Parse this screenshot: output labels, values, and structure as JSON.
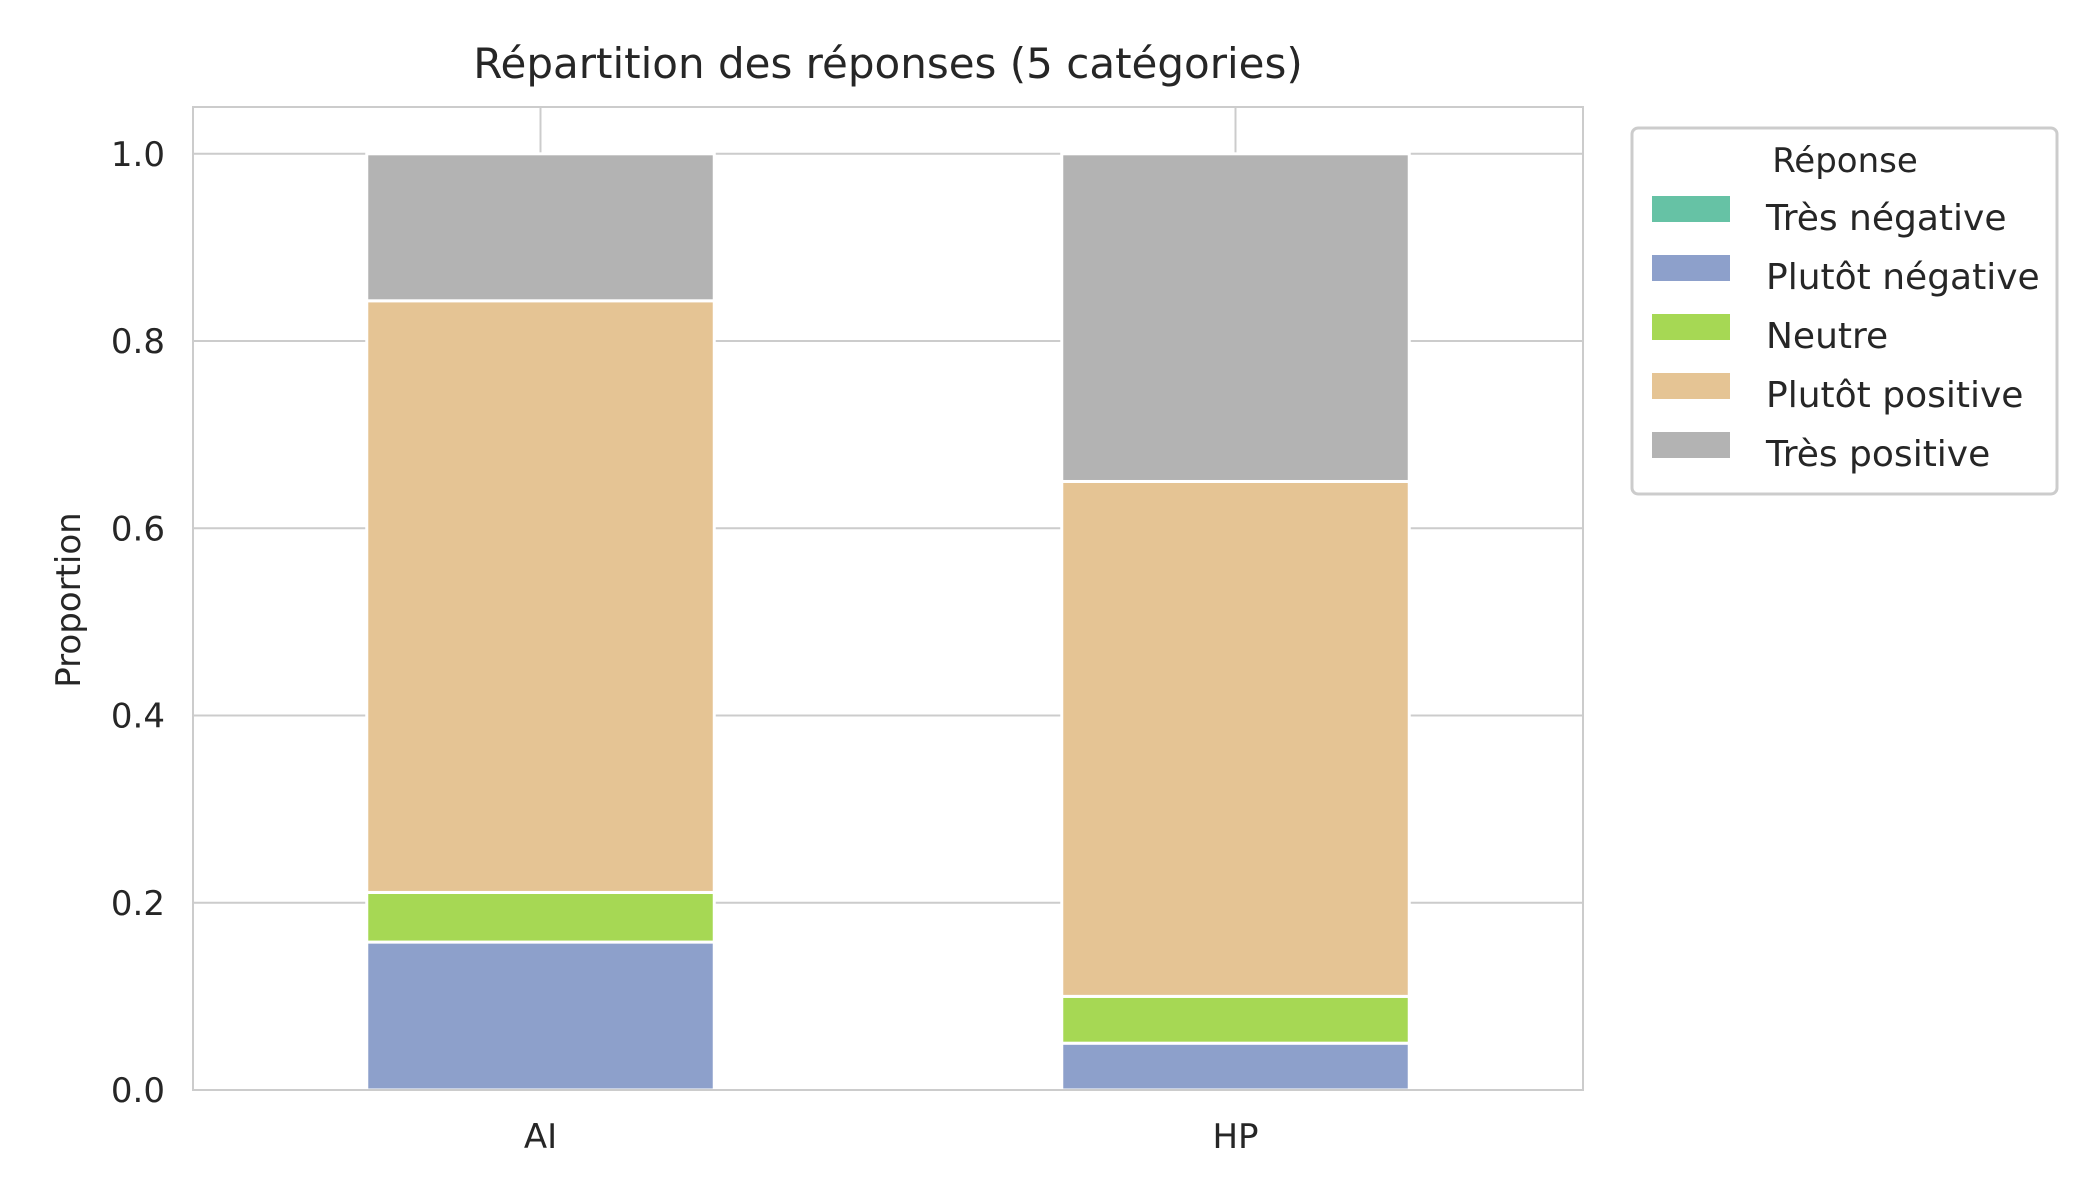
{
  "chart_data": {
    "type": "bar",
    "stacked": true,
    "title": "Répartition des réponses (5 catégories)",
    "xlabel": "",
    "ylabel": "Proportion",
    "ylim": [
      0,
      1.05
    ],
    "yticks": [
      "0.0",
      "0.2",
      "0.4",
      "0.6",
      "0.8",
      "1.0"
    ],
    "ytick_values": [
      0,
      0.2,
      0.4,
      0.6,
      0.8,
      1.0
    ],
    "categories": [
      "AI",
      "HP"
    ],
    "grid": true,
    "legend": {
      "title": "Réponse",
      "placement": "outside-top-right"
    },
    "series": [
      {
        "name": "Très négative",
        "color": "#66c2a5",
        "values": [
          0.0,
          0.0
        ]
      },
      {
        "name": "Plutôt négative",
        "color": "#8da0cb",
        "values": [
          0.158,
          0.05
        ]
      },
      {
        "name": "Neutre",
        "color": "#a6d854",
        "values": [
          0.053,
          0.05
        ]
      },
      {
        "name": "Plutôt positive",
        "color": "#e5c494",
        "values": [
          0.632,
          0.55
        ]
      },
      {
        "name": "Très positive",
        "color": "#b3b3b3",
        "values": [
          0.157,
          0.35
        ]
      }
    ]
  }
}
